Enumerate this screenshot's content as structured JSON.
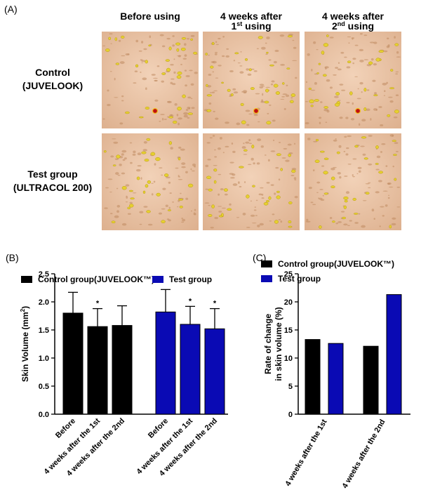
{
  "panel_a": {
    "label": "(A)",
    "columns": [
      {
        "line1": "Before using"
      },
      {
        "line1": "4 weeks after",
        "line2": "1",
        "sup": "st",
        "rest": " using"
      },
      {
        "line1": "4 weeks after",
        "line2": "2",
        "sup": "nd",
        "rest": " using"
      }
    ],
    "rows": [
      {
        "line1": "Control",
        "line2": "(JUVELOOK)"
      },
      {
        "line1": "Test group",
        "line2": "(ULTRACOL 200)"
      }
    ]
  },
  "chart_data": [
    {
      "type": "bar",
      "panel_label": "(B)",
      "group_by": "series",
      "y_label": "Skin Volume (mm",
      "y_label_sup": "2",
      "y_label_end": ")",
      "categories": [
        "Before",
        "4 weeks after the 1st",
        "4 weeks after the 2nd"
      ],
      "series": [
        {
          "name": "Control group(JUVELOOK™)",
          "color": "#000000",
          "values": [
            1.8,
            1.56,
            1.58
          ],
          "errors": [
            0.37,
            0.32,
            0.35
          ],
          "annotations": [
            null,
            "*",
            null
          ]
        },
        {
          "name": "Test group",
          "color": "#0a0ab4",
          "values": [
            1.82,
            1.6,
            1.52
          ],
          "errors": [
            0.4,
            0.32,
            0.36
          ],
          "annotations": [
            null,
            "*",
            "*"
          ]
        }
      ],
      "ylim": [
        0,
        2.5
      ],
      "yticks": [
        {
          "value": 0,
          "label": "0.0"
        },
        {
          "value": 0.5,
          "label": "0.5"
        },
        {
          "value": 1,
          "label": "1.0"
        },
        {
          "value": 1.5,
          "label": "1.5"
        },
        {
          "value": 2,
          "label": "2.0"
        },
        {
          "value": 2.5,
          "label": "2.5"
        }
      ]
    },
    {
      "type": "bar",
      "panel_label": "(C)",
      "group_by": "categories",
      "y_label": "Rate of change",
      "y_label_2": "in skin volume (%)",
      "categories": [
        "4 weeks after the 1st",
        "4 weeks after the 2nd"
      ],
      "series": [
        {
          "name": "Control group(JUVELOOK™)",
          "color": "#000000",
          "values": [
            13.3,
            12.1
          ]
        },
        {
          "name": "Test group",
          "color": "#0a0ab4",
          "values": [
            12.6,
            21.3
          ]
        }
      ],
      "ylim": [
        0,
        25
      ],
      "yticks": [
        0,
        5,
        10,
        15,
        20,
        25
      ]
    }
  ]
}
